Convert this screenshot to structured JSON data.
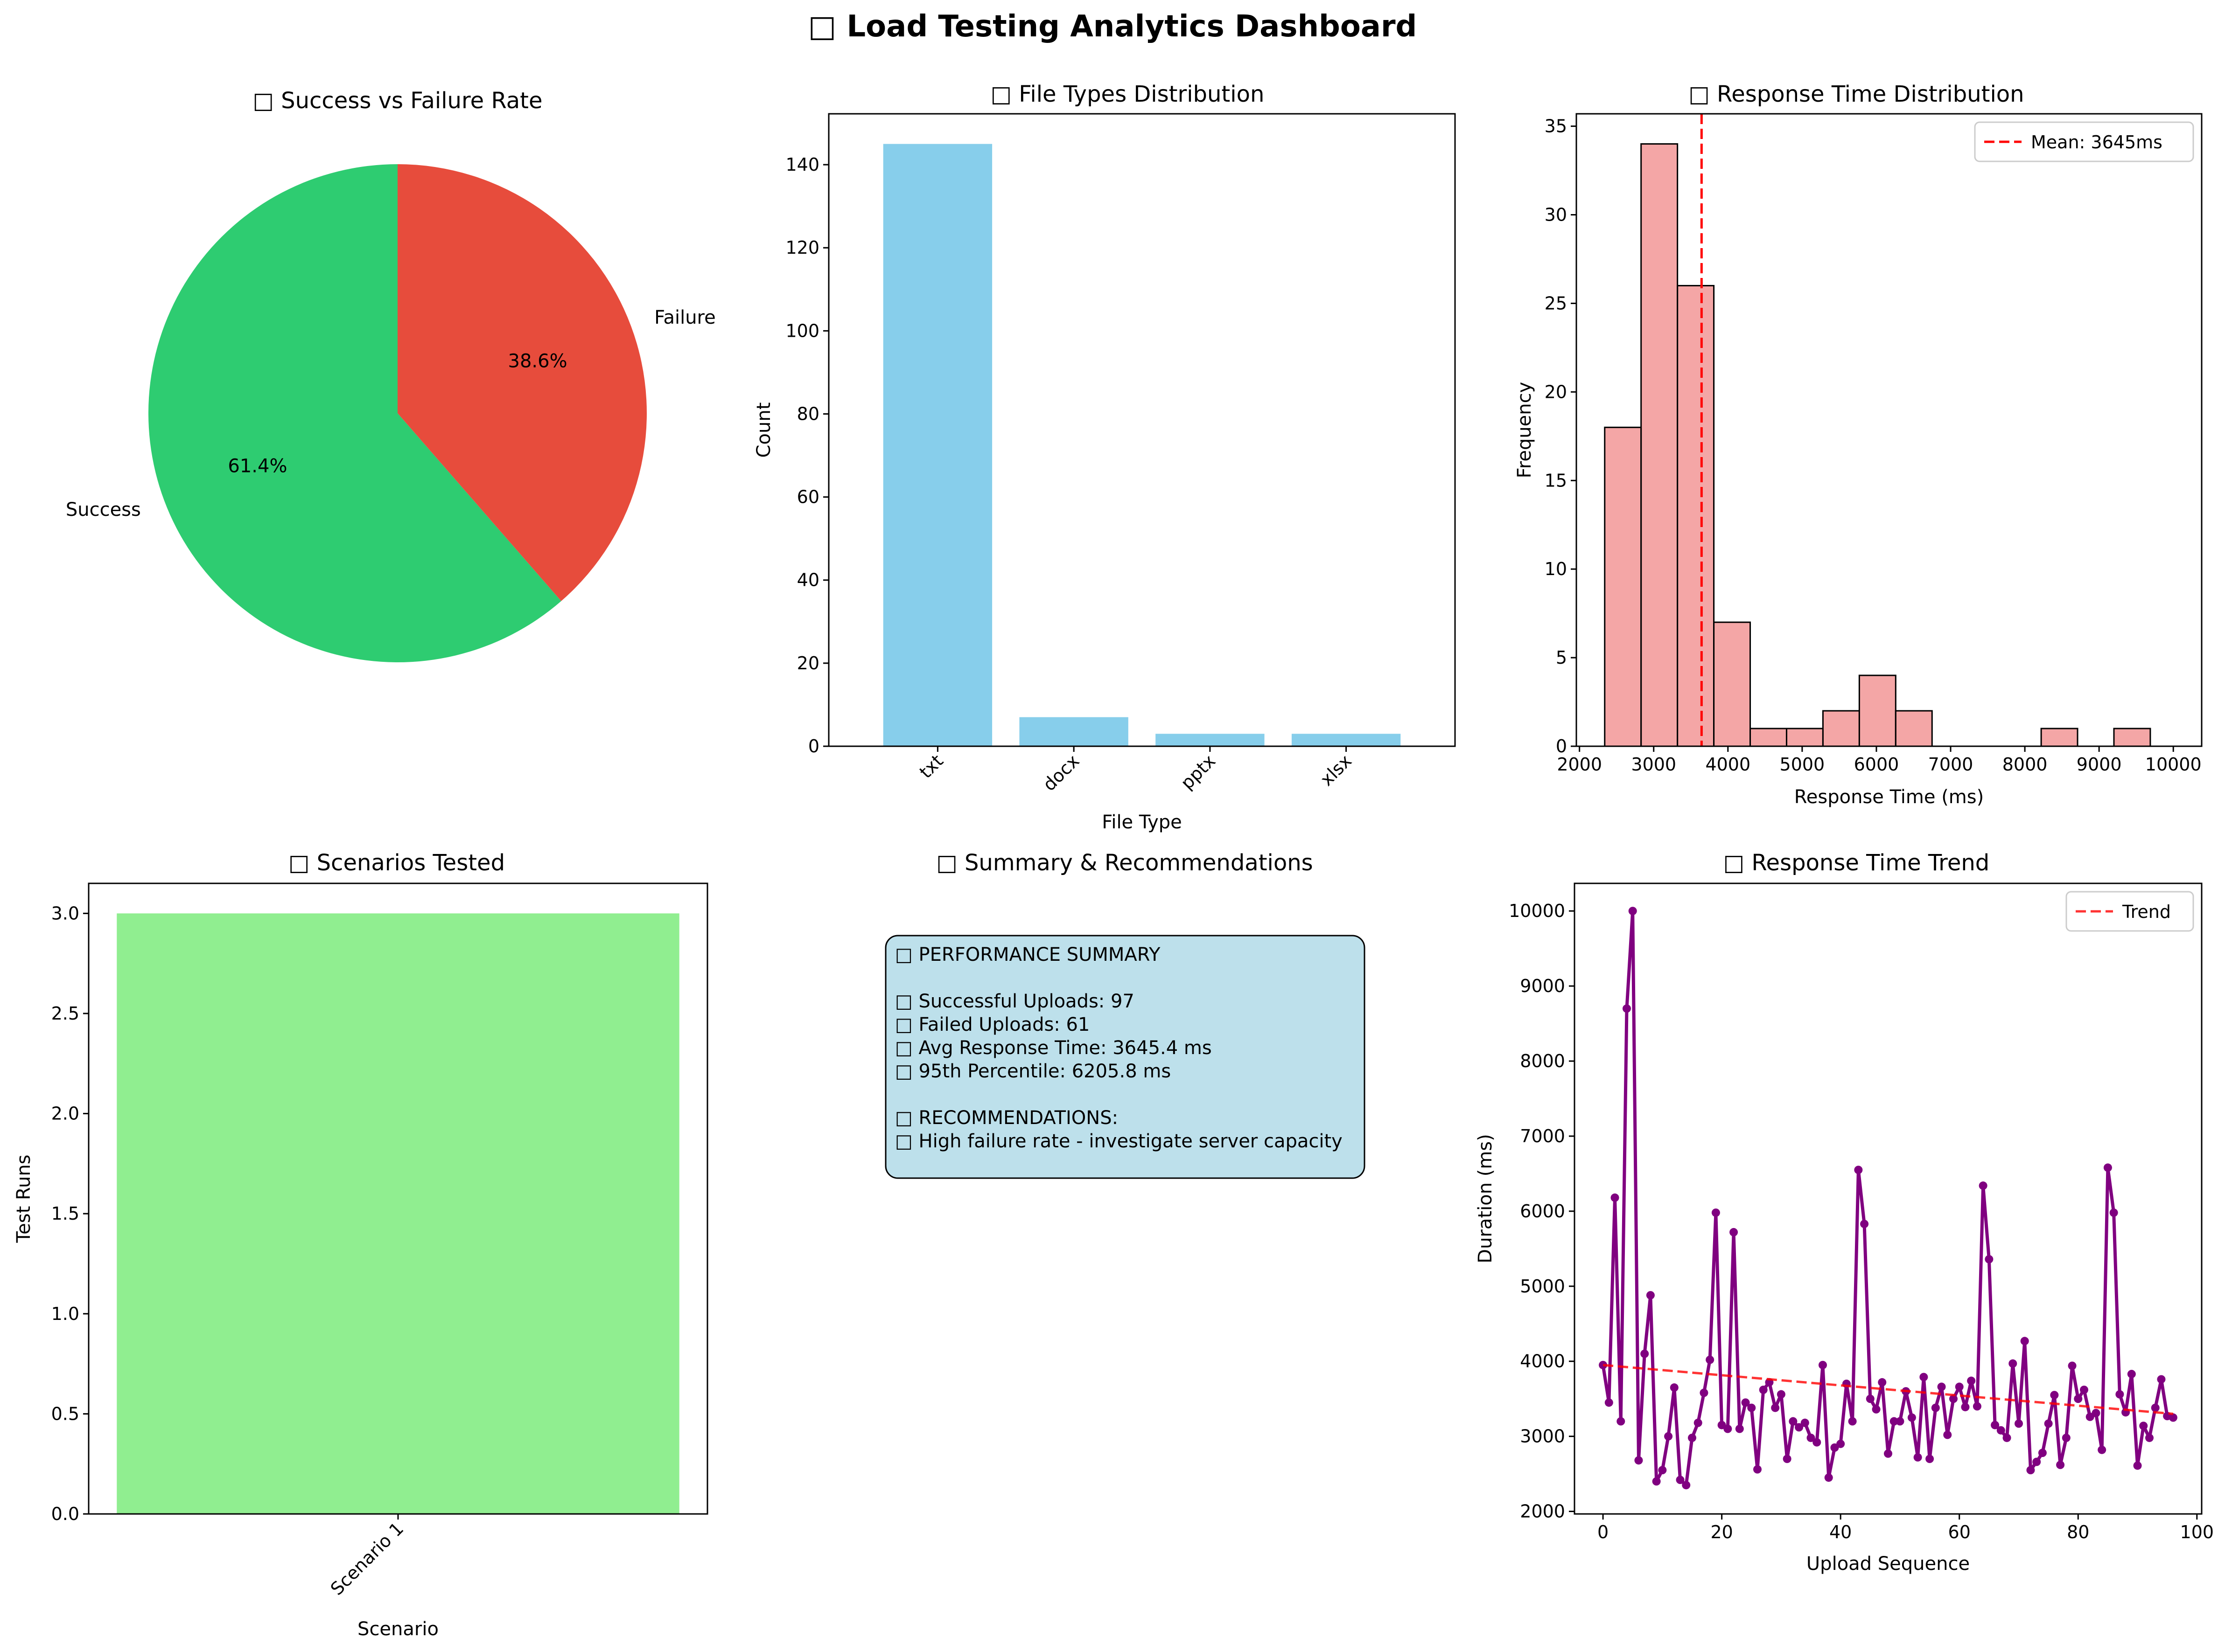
{
  "dashboard": {
    "title": "□ Load Testing Analytics Dashboard"
  },
  "chart_data": [
    {
      "type": "pie",
      "title": "□ Success vs Failure Rate",
      "labels": [
        "Success",
        "Failure"
      ],
      "values": [
        61.4,
        38.6
      ],
      "value_labels": [
        "61.4%",
        "38.6%"
      ],
      "colors": [
        "#2ecc71",
        "#e74c3c"
      ]
    },
    {
      "type": "bar",
      "title": "□ File Types Distribution",
      "xlabel": "File Type",
      "ylabel": "Count",
      "categories": [
        "txt",
        "docx",
        "pptx",
        "xlsx"
      ],
      "values": [
        145,
        7,
        3,
        3
      ],
      "ylim": [
        0,
        152.25
      ],
      "yticks": [
        0,
        20,
        40,
        60,
        80,
        100,
        120,
        140
      ],
      "color": "#87ceeb"
    },
    {
      "type": "histogram",
      "title": "□ Response Time Distribution",
      "xlabel": "Response Time (ms)",
      "ylabel": "Frequency",
      "bin_start": 2340,
      "bin_width": 490,
      "counts": [
        18,
        34,
        26,
        7,
        1,
        1,
        2,
        4,
        2,
        0,
        0,
        0,
        1,
        0,
        1
      ],
      "xlim": [
        1958,
        10382
      ],
      "ylim": [
        0,
        35.7
      ],
      "xticks": [
        2000,
        3000,
        4000,
        5000,
        6000,
        7000,
        8000,
        9000,
        10000
      ],
      "yticks": [
        0,
        5,
        10,
        15,
        20,
        25,
        30,
        35
      ],
      "mean": 3645,
      "legend": "Mean: 3645ms",
      "legend_position": "upper right",
      "color": "#f08080"
    },
    {
      "type": "bar",
      "title": "□ Scenarios Tested",
      "xlabel": "Scenario",
      "ylabel": "Test Runs",
      "categories": [
        "Scenario 1"
      ],
      "values": [
        3
      ],
      "ylim": [
        0,
        3.15
      ],
      "yticks": [
        0.0,
        0.5,
        1.0,
        1.5,
        2.0,
        2.5,
        3.0
      ],
      "ytick_labels": [
        "0.0",
        "0.5",
        "1.0",
        "1.5",
        "2.0",
        "2.5",
        "3.0"
      ],
      "color": "#90ee90"
    },
    {
      "type": "line",
      "title": "□ Response Time Trend",
      "xlabel": "Upload Sequence",
      "ylabel": "Duration (ms)",
      "xlim": [
        -4.8,
        100.8
      ],
      "ylim": [
        1966,
        10368
      ],
      "xticks": [
        0,
        20,
        40,
        60,
        80,
        100
      ],
      "yticks": [
        2000,
        3000,
        4000,
        5000,
        6000,
        7000,
        8000,
        9000,
        10000
      ],
      "y": [
        3950,
        3450,
        6180,
        3200,
        8700,
        10000,
        2680,
        4100,
        4880,
        2400,
        2550,
        3000,
        3650,
        2420,
        2350,
        2980,
        3180,
        3580,
        4020,
        5980,
        3150,
        3100,
        5720,
        3100,
        3450,
        3380,
        2560,
        3620,
        3720,
        3380,
        3560,
        2700,
        3200,
        3120,
        3180,
        2980,
        2920,
        3950,
        2450,
        2850,
        2900,
        3700,
        3200,
        6550,
        5830,
        3500,
        3360,
        3720,
        2770,
        3200,
        3200,
        3600,
        3250,
        2720,
        3790,
        2700,
        3380,
        3660,
        3020,
        3500,
        3660,
        3390,
        3740,
        3400,
        6340,
        5360,
        3150,
        3080,
        2980,
        3970,
        3170,
        4270,
        2550,
        2660,
        2780,
        3170,
        3550,
        2620,
        2980,
        3940,
        3500,
        3620,
        3260,
        3310,
        2820,
        6580,
        5980,
        3560,
        3320,
        3830,
        2610,
        3140,
        2980,
        3380,
        3760,
        3270,
        3250
      ],
      "line_color": "#800080",
      "trend": {
        "start": 3950,
        "end": 3300,
        "color": "#ff0000"
      },
      "legend": "Trend",
      "legend_position": "upper right"
    }
  ],
  "summary": {
    "title": "□ Summary & Recommendations",
    "lines": [
      "□ PERFORMANCE SUMMARY",
      "",
      "□ Successful Uploads: 97",
      "□ Failed Uploads: 61",
      "□ Avg Response Time: 3645.4 ms",
      "□ 95th Percentile: 6205.8 ms",
      "",
      "□ RECOMMENDATIONS:",
      "□ High failure rate - investigate server capacity"
    ],
    "box_color": "#add8e6"
  }
}
